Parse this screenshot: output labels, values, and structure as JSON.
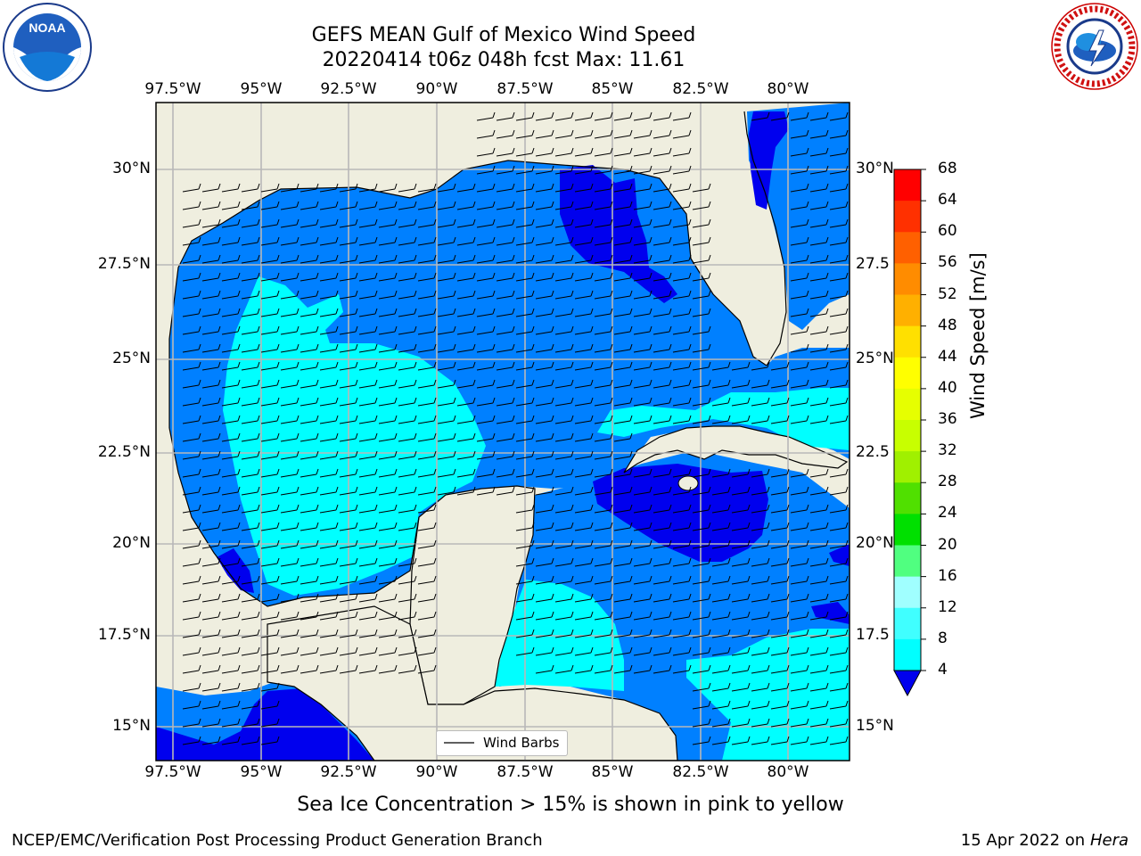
{
  "header": {
    "title_line1": "GEFS MEAN Gulf of Mexico Wind Speed",
    "title_line2": "20220414 t06z 048h fcst   Max: 11.61"
  },
  "logos": {
    "left": "NOAA",
    "right": "NATIONAL WEATHER SERVICE"
  },
  "map": {
    "lon_labels": [
      "97.5°W",
      "95°W",
      "92.5°W",
      "90°W",
      "87.5°W",
      "85°W",
      "82.5°W",
      "80°W"
    ],
    "lat_labels_left": [
      "30°N",
      "27.5°N",
      "25°N",
      "22.5°N",
      "20°N",
      "17.5°N",
      "15°N"
    ],
    "lat_labels_right": [
      "30°N",
      "27.5",
      "25°N",
      "22.5",
      "20°N",
      "17.5",
      "15°N"
    ],
    "legend_label": "Wind Barbs",
    "colors": {
      "land": "#efeedf",
      "water_4_8": "#0080ff",
      "water_8_12": "#00ffff",
      "water_0_4": "#0000ee",
      "grid": "#b8b8b8"
    }
  },
  "colorbar": {
    "title": "Wind Speed [m/s]",
    "ticks": [
      "68",
      "64",
      "60",
      "56",
      "52",
      "48",
      "44",
      "40",
      "36",
      "32",
      "28",
      "24",
      "20",
      "16",
      "12",
      "8",
      "4"
    ],
    "colors": [
      "#ff0000",
      "#ff3000",
      "#ff6000",
      "#ff8c00",
      "#ffb000",
      "#ffe000",
      "#ffff00",
      "#e6ff00",
      "#c8ff00",
      "#a0f000",
      "#50e000",
      "#00e000",
      "#50ff80",
      "#a0ffff",
      "#40ffff",
      "#00ffff",
      "#0080ff"
    ],
    "below_color": "#0000ee"
  },
  "footer": {
    "caption": "Sea Ice Concentration > 15% is shown in pink to yellow",
    "left": "NCEP/EMC/Verification Post Processing Product Generation Branch",
    "right_date": "15 Apr 2022 on ",
    "right_host": "Hera"
  }
}
